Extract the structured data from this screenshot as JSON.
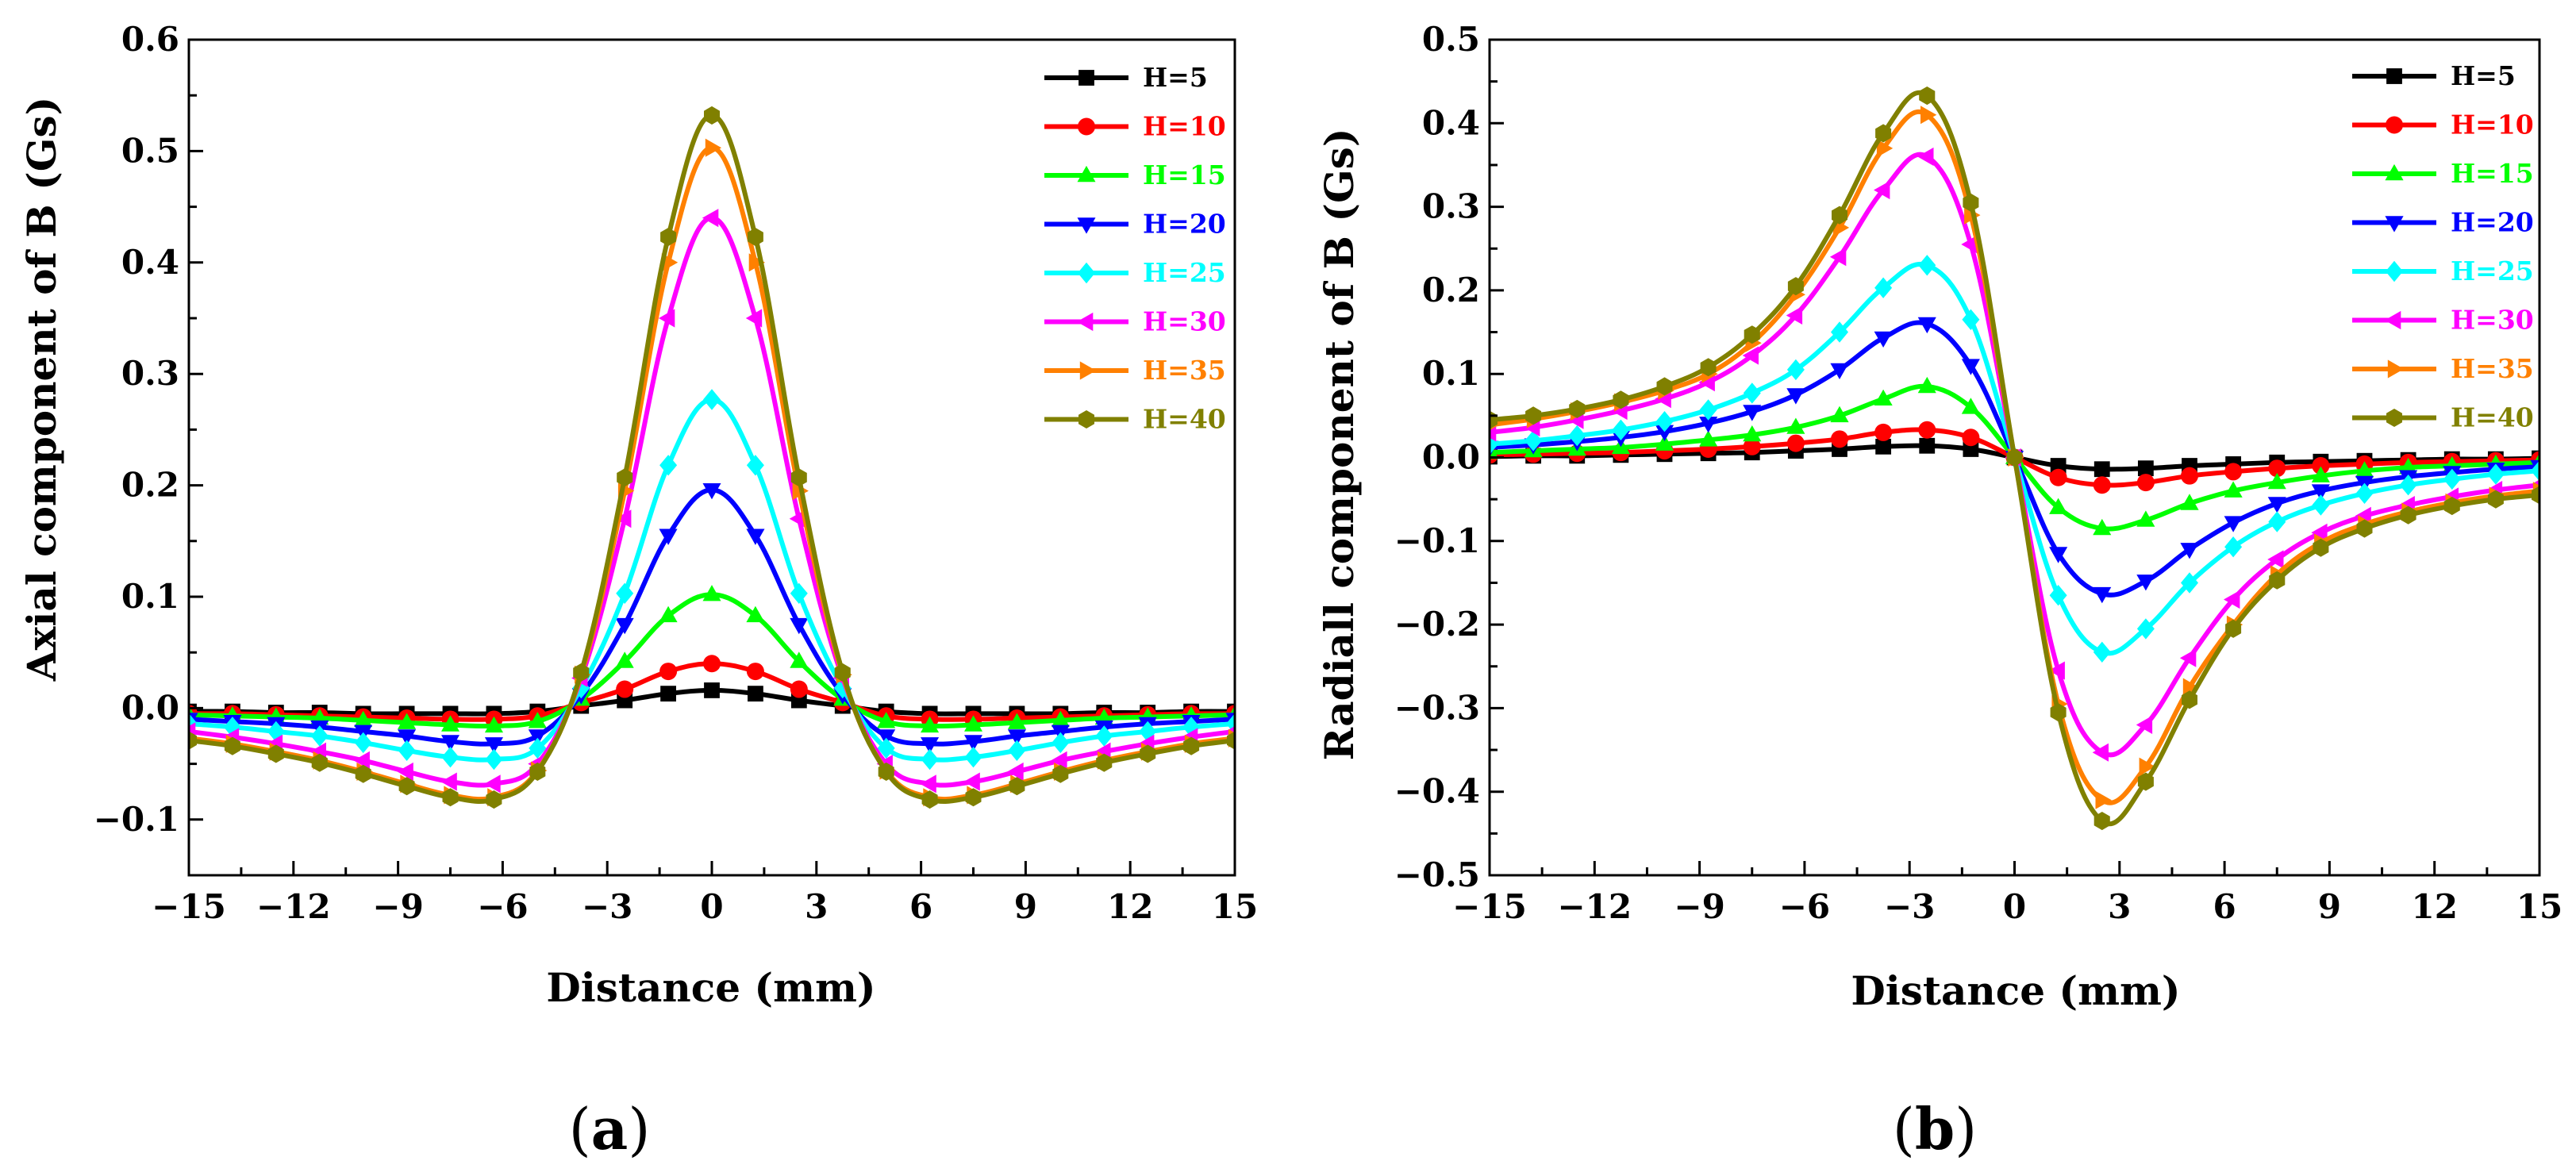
{
  "colors": {
    "H=5": "#000000",
    "H=10": "#ff0000",
    "H=15": "#00ff00",
    "H=20": "#0000ff",
    "H=25": "#00ffff",
    "H=30": "#ff00ff",
    "H=35": "#ff8000",
    "H=40": "#808000"
  },
  "chart_data": [
    {
      "type": "line",
      "caption_open": "(",
      "caption_letter": "a",
      "caption_close": ")",
      "xlabel": "Distance (mm)",
      "ylabel": "Axial component of B (Gs)",
      "xlim": [
        -15,
        15
      ],
      "ylim": [
        -0.15,
        0.6
      ],
      "xticks": [
        -15,
        -12,
        -9,
        -6,
        -3,
        0,
        3,
        6,
        9,
        12,
        15
      ],
      "yticks": [
        -0.1,
        0.0,
        0.1,
        0.2,
        0.3,
        0.4,
        0.5,
        0.6
      ],
      "ytick_labels": [
        "−0.1",
        "0.0",
        "0.1",
        "0.2",
        "0.3",
        "0.4",
        "0.5",
        "0.6"
      ],
      "xtick_labels": [
        "−15",
        "−12",
        "−9",
        "−6",
        "−3",
        "0",
        "3",
        "6",
        "9",
        "12",
        "15"
      ],
      "legend_position": "top-right",
      "series": [
        {
          "name": "H=5",
          "marker": "square",
          "x": [
            -15,
            -13.75,
            -12.5,
            -11.25,
            -10,
            -8.75,
            -7.5,
            -6.25,
            -5,
            -3.75,
            -2.5,
            -1.25,
            0,
            1.25,
            2.5,
            3.75,
            5,
            6.25,
            7.5,
            8.75,
            10,
            11.25,
            12.5,
            13.75,
            15
          ],
          "y": [
            -0.003,
            -0.003,
            -0.004,
            -0.004,
            -0.005,
            -0.005,
            -0.005,
            -0.005,
            -0.003,
            0.002,
            0.007,
            0.013,
            0.016,
            0.013,
            0.007,
            0.002,
            -0.003,
            -0.005,
            -0.005,
            -0.005,
            -0.005,
            -0.004,
            -0.004,
            -0.003,
            -0.003
          ]
        },
        {
          "name": "H=10",
          "marker": "circle",
          "x": [
            -15,
            -13.75,
            -12.5,
            -11.25,
            -10,
            -8.75,
            -7.5,
            -6.25,
            -5,
            -3.75,
            -2.5,
            -1.25,
            0,
            1.25,
            2.5,
            3.75,
            5,
            6.25,
            7.5,
            8.75,
            10,
            11.25,
            12.5,
            13.75,
            15
          ],
          "y": [
            -0.005,
            -0.005,
            -0.006,
            -0.007,
            -0.008,
            -0.009,
            -0.01,
            -0.01,
            -0.007,
            0.005,
            0.017,
            0.033,
            0.04,
            0.033,
            0.017,
            0.005,
            -0.007,
            -0.01,
            -0.01,
            -0.009,
            -0.008,
            -0.007,
            -0.006,
            -0.005,
            -0.005
          ]
        },
        {
          "name": "H=15",
          "marker": "triangle-up",
          "x": [
            -15,
            -13.75,
            -12.5,
            -11.25,
            -10,
            -8.75,
            -7.5,
            -6.25,
            -5,
            -3.75,
            -2.5,
            -1.25,
            0,
            1.25,
            2.5,
            3.75,
            5,
            6.25,
            7.5,
            8.75,
            10,
            11.25,
            12.5,
            13.75,
            15
          ],
          "y": [
            -0.006,
            -0.007,
            -0.008,
            -0.009,
            -0.011,
            -0.013,
            -0.015,
            -0.016,
            -0.012,
            0.008,
            0.042,
            0.083,
            0.102,
            0.083,
            0.042,
            0.008,
            -0.012,
            -0.016,
            -0.015,
            -0.013,
            -0.011,
            -0.009,
            -0.008,
            -0.007,
            -0.006
          ]
        },
        {
          "name": "H=20",
          "marker": "triangle-down",
          "x": [
            -15,
            -13.75,
            -12.5,
            -11.25,
            -10,
            -8.75,
            -7.5,
            -6.25,
            -5,
            -3.75,
            -2.5,
            -1.25,
            0,
            1.25,
            2.5,
            3.75,
            5,
            6.25,
            7.5,
            8.75,
            10,
            11.25,
            12.5,
            13.75,
            15
          ],
          "y": [
            -0.01,
            -0.012,
            -0.014,
            -0.017,
            -0.021,
            -0.025,
            -0.03,
            -0.032,
            -0.025,
            0.012,
            0.075,
            0.155,
            0.196,
            0.155,
            0.075,
            0.012,
            -0.025,
            -0.032,
            -0.03,
            -0.025,
            -0.021,
            -0.017,
            -0.014,
            -0.012,
            -0.01
          ]
        },
        {
          "name": "H=25",
          "marker": "diamond",
          "x": [
            -15,
            -13.75,
            -12.5,
            -11.25,
            -10,
            -8.75,
            -7.5,
            -6.25,
            -5,
            -3.75,
            -2.5,
            -1.25,
            0,
            1.25,
            2.5,
            3.75,
            5,
            6.25,
            7.5,
            8.75,
            10,
            11.25,
            12.5,
            13.75,
            15
          ],
          "y": [
            -0.014,
            -0.017,
            -0.021,
            -0.025,
            -0.031,
            -0.038,
            -0.044,
            -0.046,
            -0.036,
            0.018,
            0.103,
            0.218,
            0.277,
            0.218,
            0.103,
            0.018,
            -0.036,
            -0.046,
            -0.044,
            -0.038,
            -0.031,
            -0.025,
            -0.021,
            -0.017,
            -0.014
          ]
        },
        {
          "name": "H=30",
          "marker": "triangle-left",
          "x": [
            -15,
            -13.75,
            -12.5,
            -11.25,
            -10,
            -8.75,
            -7.5,
            -6.25,
            -5,
            -3.75,
            -2.5,
            -1.25,
            0,
            1.25,
            2.5,
            3.75,
            5,
            6.25,
            7.5,
            8.75,
            10,
            11.25,
            12.5,
            13.75,
            15
          ],
          "y": [
            -0.021,
            -0.026,
            -0.032,
            -0.039,
            -0.047,
            -0.057,
            -0.066,
            -0.068,
            -0.05,
            0.027,
            0.17,
            0.35,
            0.44,
            0.35,
            0.17,
            0.027,
            -0.05,
            -0.068,
            -0.066,
            -0.057,
            -0.047,
            -0.039,
            -0.032,
            -0.026,
            -0.021
          ]
        },
        {
          "name": "H=35",
          "marker": "triangle-right",
          "x": [
            -15,
            -13.75,
            -12.5,
            -11.25,
            -10,
            -8.75,
            -7.5,
            -6.25,
            -5,
            -3.75,
            -2.5,
            -1.25,
            0,
            1.25,
            2.5,
            3.75,
            5,
            6.25,
            7.5,
            8.75,
            10,
            11.25,
            12.5,
            13.75,
            15
          ],
          "y": [
            -0.027,
            -0.032,
            -0.039,
            -0.047,
            -0.057,
            -0.068,
            -0.078,
            -0.08,
            -0.056,
            0.03,
            0.195,
            0.4,
            0.503,
            0.4,
            0.195,
            0.03,
            -0.056,
            -0.08,
            -0.078,
            -0.068,
            -0.057,
            -0.047,
            -0.039,
            -0.032,
            -0.027
          ]
        },
        {
          "name": "H=40",
          "marker": "hexagon",
          "x": [
            -15,
            -13.75,
            -12.5,
            -11.25,
            -10,
            -8.75,
            -7.5,
            -6.25,
            -5,
            -3.75,
            -2.5,
            -1.25,
            0,
            1.25,
            2.5,
            3.75,
            5,
            6.25,
            7.5,
            8.75,
            10,
            11.25,
            12.5,
            13.75,
            15
          ],
          "y": [
            -0.029,
            -0.034,
            -0.041,
            -0.049,
            -0.059,
            -0.07,
            -0.08,
            -0.082,
            -0.057,
            0.032,
            0.207,
            0.423,
            0.532,
            0.423,
            0.207,
            0.032,
            -0.057,
            -0.082,
            -0.08,
            -0.07,
            -0.059,
            -0.049,
            -0.041,
            -0.034,
            -0.029
          ]
        }
      ]
    },
    {
      "type": "line",
      "caption_open": "(",
      "caption_letter": "b",
      "caption_close": ")",
      "xlabel": "Distance (mm)",
      "ylabel": "Radiall component of B (Gs)",
      "xlim": [
        -15,
        15
      ],
      "ylim": [
        -0.5,
        0.5
      ],
      "xticks": [
        -15,
        -12,
        -9,
        -6,
        -3,
        0,
        3,
        6,
        9,
        12,
        15
      ],
      "yticks": [
        -0.5,
        -0.4,
        -0.3,
        -0.2,
        -0.1,
        0.0,
        0.1,
        0.2,
        0.3,
        0.4,
        0.5
      ],
      "ytick_labels": [
        "−0.5",
        "−0.4",
        "−0.3",
        "−0.2",
        "−0.1",
        "0.0",
        "0.1",
        "0.2",
        "0.3",
        "0.4",
        "0.5"
      ],
      "xtick_labels": [
        "−15",
        "−12",
        "−9",
        "−6",
        "−3",
        "0",
        "3",
        "6",
        "9",
        "12",
        "15"
      ],
      "legend_position": "top-right",
      "series": [
        {
          "name": "H=5",
          "marker": "square",
          "x": [
            -15,
            -13.75,
            -12.5,
            -11.25,
            -10,
            -8.75,
            -7.5,
            -6.25,
            -5,
            -3.75,
            -2.5,
            -1.25,
            0,
            1.25,
            2.5,
            3.75,
            5,
            6.25,
            7.5,
            8.75,
            10,
            11.25,
            12.5,
            13.75,
            15
          ],
          "y": [
            0.001,
            0.002,
            0.002,
            0.003,
            0.004,
            0.005,
            0.006,
            0.008,
            0.01,
            0.013,
            0.014,
            0.01,
            0,
            -0.01,
            -0.014,
            -0.013,
            -0.01,
            -0.008,
            -0.006,
            -0.005,
            -0.004,
            -0.003,
            -0.002,
            -0.002,
            -0.001
          ]
        },
        {
          "name": "H=10",
          "marker": "circle",
          "x": [
            -15,
            -13.75,
            -12.5,
            -11.25,
            -10,
            -8.75,
            -7.5,
            -6.25,
            -5,
            -3.75,
            -2.5,
            -1.25,
            0,
            1.25,
            2.5,
            3.75,
            5,
            6.25,
            7.5,
            8.75,
            10,
            11.25,
            12.5,
            13.75,
            15
          ],
          "y": [
            0.003,
            0.004,
            0.005,
            0.006,
            0.008,
            0.01,
            0.013,
            0.017,
            0.022,
            0.03,
            0.033,
            0.024,
            0,
            -0.024,
            -0.033,
            -0.03,
            -0.022,
            -0.017,
            -0.013,
            -0.01,
            -0.008,
            -0.006,
            -0.005,
            -0.004,
            -0.003
          ]
        },
        {
          "name": "H=15",
          "marker": "triangle-up",
          "x": [
            -15,
            -13.75,
            -12.5,
            -11.25,
            -10,
            -8.75,
            -7.5,
            -6.25,
            -5,
            -3.75,
            -2.5,
            -1.25,
            0,
            1.25,
            2.5,
            3.75,
            5,
            6.25,
            7.5,
            8.75,
            10,
            11.25,
            12.5,
            13.75,
            15
          ],
          "y": [
            0.006,
            0.008,
            0.01,
            0.012,
            0.016,
            0.021,
            0.027,
            0.036,
            0.05,
            0.07,
            0.085,
            0.06,
            0,
            -0.06,
            -0.085,
            -0.075,
            -0.055,
            -0.04,
            -0.03,
            -0.022,
            -0.016,
            -0.012,
            -0.01,
            -0.008,
            -0.006
          ]
        },
        {
          "name": "H=20",
          "marker": "triangle-down",
          "x": [
            -15,
            -13.75,
            -12.5,
            -11.25,
            -10,
            -8.75,
            -7.5,
            -6.25,
            -5,
            -3.75,
            -2.5,
            -1.25,
            0,
            1.25,
            2.5,
            3.75,
            5,
            6.25,
            7.5,
            8.75,
            10,
            11.25,
            12.5,
            13.75,
            15
          ],
          "y": [
            0.012,
            0.015,
            0.019,
            0.024,
            0.031,
            0.041,
            0.055,
            0.075,
            0.105,
            0.143,
            0.16,
            0.11,
            0,
            -0.115,
            -0.163,
            -0.148,
            -0.11,
            -0.078,
            -0.055,
            -0.04,
            -0.03,
            -0.023,
            -0.018,
            -0.014,
            -0.011
          ]
        },
        {
          "name": "H=25",
          "marker": "diamond",
          "x": [
            -15,
            -13.75,
            -12.5,
            -11.25,
            -10,
            -8.75,
            -7.5,
            -6.25,
            -5,
            -3.75,
            -2.5,
            -1.25,
            0,
            1.25,
            2.5,
            3.75,
            5,
            6.25,
            7.5,
            8.75,
            10,
            11.25,
            12.5,
            13.75,
            15
          ],
          "y": [
            0.016,
            0.02,
            0.026,
            0.033,
            0.043,
            0.057,
            0.077,
            0.105,
            0.15,
            0.203,
            0.23,
            0.165,
            0,
            -0.165,
            -0.233,
            -0.205,
            -0.15,
            -0.107,
            -0.077,
            -0.057,
            -0.043,
            -0.033,
            -0.026,
            -0.02,
            -0.016
          ]
        },
        {
          "name": "H=30",
          "marker": "triangle-left",
          "x": [
            -15,
            -13.75,
            -12.5,
            -11.25,
            -10,
            -8.75,
            -7.5,
            -6.25,
            -5,
            -3.75,
            -2.5,
            -1.25,
            0,
            1.25,
            2.5,
            3.75,
            5,
            6.25,
            7.5,
            8.75,
            10,
            11.25,
            12.5,
            13.75,
            15
          ],
          "y": [
            0.03,
            0.036,
            0.045,
            0.056,
            0.07,
            0.09,
            0.122,
            0.17,
            0.24,
            0.32,
            0.36,
            0.255,
            0,
            -0.255,
            -0.353,
            -0.32,
            -0.24,
            -0.17,
            -0.122,
            -0.09,
            -0.07,
            -0.057,
            -0.047,
            -0.039,
            -0.033
          ]
        },
        {
          "name": "H=35",
          "marker": "triangle-right",
          "x": [
            -15,
            -13.75,
            -12.5,
            -11.25,
            -10,
            -8.75,
            -7.5,
            -6.25,
            -5,
            -3.75,
            -2.5,
            -1.25,
            0,
            1.25,
            2.5,
            3.75,
            5,
            6.25,
            7.5,
            8.75,
            10,
            11.25,
            12.5,
            13.75,
            15
          ],
          "y": [
            0.039,
            0.046,
            0.055,
            0.066,
            0.08,
            0.1,
            0.137,
            0.195,
            0.275,
            0.37,
            0.41,
            0.29,
            0,
            -0.295,
            -0.41,
            -0.37,
            -0.275,
            -0.2,
            -0.14,
            -0.102,
            -0.08,
            -0.065,
            -0.054,
            -0.046,
            -0.04
          ]
        },
        {
          "name": "H=40",
          "marker": "hexagon",
          "x": [
            -15,
            -13.75,
            -12.5,
            -11.25,
            -10,
            -8.75,
            -7.5,
            -6.25,
            -5,
            -3.75,
            -2.5,
            -1.25,
            0,
            1.25,
            2.5,
            3.75,
            5,
            6.25,
            7.5,
            8.75,
            10,
            11.25,
            12.5,
            13.75,
            15
          ],
          "y": [
            0.045,
            0.05,
            0.058,
            0.069,
            0.085,
            0.108,
            0.147,
            0.205,
            0.29,
            0.388,
            0.433,
            0.305,
            0,
            -0.305,
            -0.435,
            -0.388,
            -0.29,
            -0.205,
            -0.147,
            -0.108,
            -0.085,
            -0.069,
            -0.058,
            -0.05,
            -0.045
          ]
        }
      ]
    }
  ]
}
